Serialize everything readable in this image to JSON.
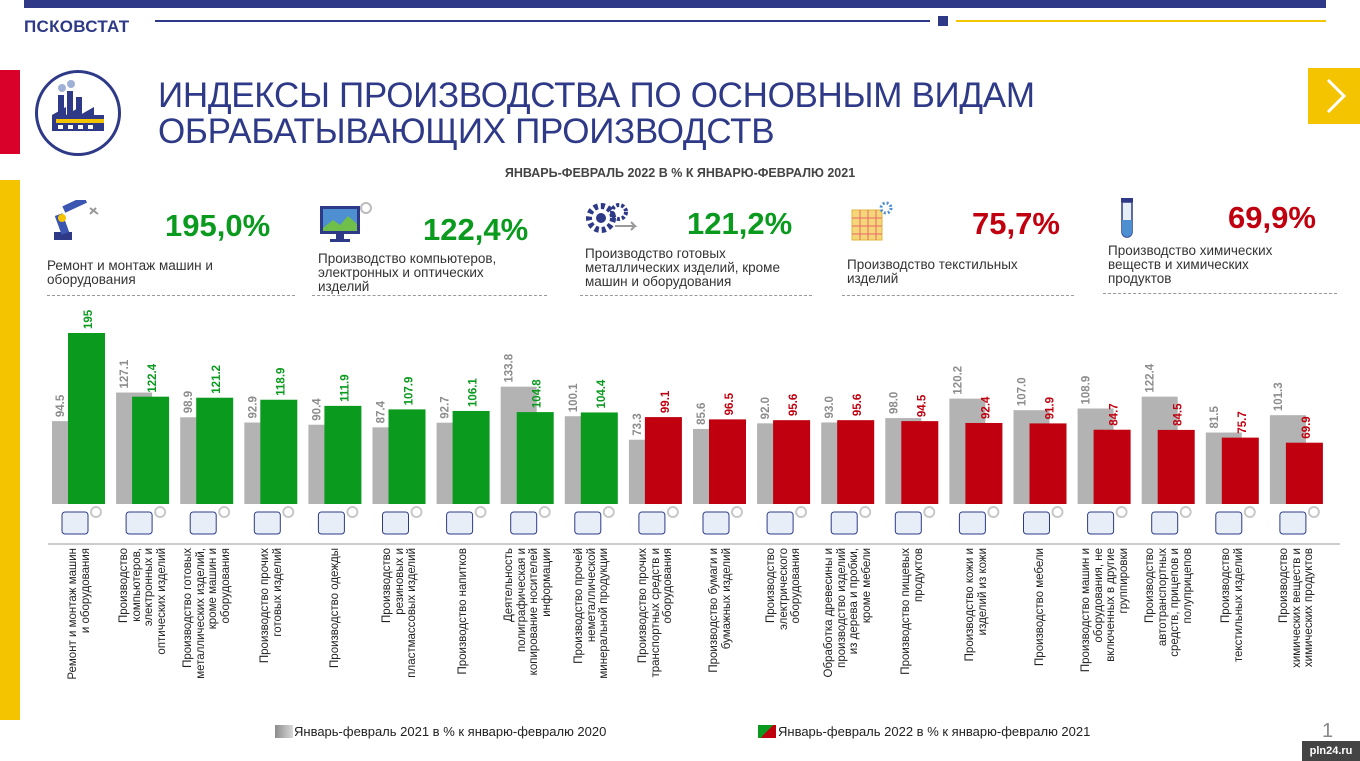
{
  "org": "ПСКОВСТАТ",
  "title_line1": "ИНДЕКСЫ ПРОИЗВОДСТВА ПО ОСНОВНЫМ ВИДАМ",
  "title_line2": "ОБРАБАТЫВАЮЩИХ ПРОИЗВОДСТВ",
  "subtitle": "ЯНВАРЬ-ФЕВРАЛЬ 2022 В % К ЯНВАРЮ-ФЕВРАЛЮ 2021",
  "highlights": [
    {
      "percent": "195,0%",
      "label": "Ремонт и монтаж машин и\nоборудования",
      "color": "#0a9a1e",
      "icon": "robot-arm-icon"
    },
    {
      "percent": "122,4%",
      "label": "Производство компьютеров,\nэлектронных и оптических\nизделий",
      "color": "#0a9a1e",
      "icon": "monitor-icon"
    },
    {
      "percent": "121,2%",
      "label": "Производство готовых\nметаллических изделий, кроме\nмашин и оборудования",
      "color": "#0a9a1e",
      "icon": "gears-icon"
    },
    {
      "percent": "75,7%",
      "label": "Производство текстильных\nизделий",
      "color": "#c0000f",
      "icon": "textile-icon"
    },
    {
      "percent": "69,9%",
      "label": "Производство химических\nвеществ и химических\nпродуктов",
      "color": "#c0000f",
      "icon": "test-tube-icon"
    }
  ],
  "chart_data": {
    "type": "bar",
    "categories": [
      "Ремонт и монтаж машин\nи оборудования",
      "Производство\nкомпьютеров,\nэлектронных и\nоптических изделий",
      "Производство готовых\nметаллических изделий,\nкроме машин и\nоборудования",
      "Производство прочих\nготовых изделий",
      "Производство одежды",
      "Производство\nрезиновых и\nпластмассовых изделий",
      "Производство напитков",
      "Деятельность\nполиграфическая и\nкопирование носителей\nинформации",
      "Производство прочей\nнеметаллической\nминеральной продукции",
      "Производство прочих\nтранспортных средств и\nоборудования",
      "Производство бумаги и\nбумажных изделий",
      "Производство\nэлектрического\nоборудования",
      "Обработка древесины и\nпроизводство изделий\nиз дерева и пробки,\nкроме мебели",
      "Производство пищевых\nпродуктов",
      "Производство кожи и\nизделий из кожи",
      "Производство мебели",
      "Производство машин и\nоборудования, не\nвключенных в другие\nгруппировки",
      "Производство\nавтотранспортных\nсредств, прицепов и\nполуприцепов",
      "Производство\nтекстильных изделий",
      "Производство\nхимических веществ и\nхимических продуктов"
    ],
    "series": [
      {
        "name": "Январь-февраль 2021 в % к январю-февралю 2020",
        "values": [
          94.5,
          127.1,
          98.9,
          92.9,
          90.4,
          87.4,
          92.7,
          133.8,
          100.1,
          73.3,
          85.6,
          92.0,
          93.0,
          98.0,
          120.2,
          107.0,
          108.9,
          122.4,
          81.5,
          101.3
        ],
        "labels": [
          "94.5",
          "127.1",
          "98.9",
          "92.9",
          "90.4",
          "87.4",
          "92.7",
          "133.8",
          "100.1",
          "73.3",
          "85.6",
          "92.0",
          "93.0",
          "98.0",
          "120.2",
          "107.0",
          "108.9",
          "122.4",
          "81.5",
          "101.3"
        ]
      },
      {
        "name": "Январь-февраль 2022 в % к январю-февралю 2021",
        "values": [
          195,
          122.4,
          121.2,
          118.9,
          111.9,
          107.9,
          106.1,
          104.8,
          104.4,
          99.1,
          96.5,
          95.6,
          95.6,
          94.5,
          92.4,
          91.9,
          84.7,
          84.5,
          75.7,
          69.9
        ],
        "labels": [
          "195",
          "122.4",
          "121.2",
          "118.9",
          "111.9",
          "107.9",
          "106.1",
          "104.8",
          "104.4",
          "99.1",
          "96.5",
          "95.6",
          "95.6",
          "94.5",
          "92.4",
          "91.9",
          "84.7",
          "84.5",
          "75.7",
          "69.9"
        ]
      }
    ],
    "colors": {
      "prev": "#b3b3b3",
      "growth": "#0a9a1e",
      "decline": "#c0000f",
      "label_prev": "#8c8c8c"
    },
    "ylim": [
      0,
      195
    ],
    "grid": false,
    "legend": "bottom"
  },
  "legend": {
    "prev": "Январь-февраль 2021 в % к январю-февралю 2020",
    "curr": "Январь-февраль 2022 в % к январю-февралю 2021"
  },
  "page_number": "1",
  "watermark": "pln24.ru"
}
